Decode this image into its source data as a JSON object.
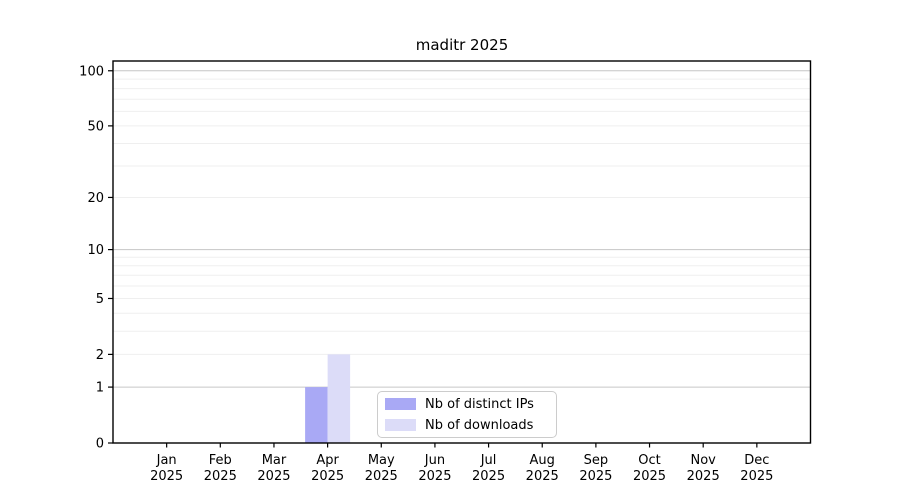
{
  "chart_data": {
    "type": "bar",
    "title": "maditr 2025",
    "categories": [
      "Jan 2025",
      "Feb 2025",
      "Mar 2025",
      "Apr 2025",
      "May 2025",
      "Jun 2025",
      "Jul 2025",
      "Aug 2025",
      "Sep 2025",
      "Oct 2025",
      "Nov 2025",
      "Dec 2025"
    ],
    "x_tick_labels": [
      {
        "month": "Jan",
        "year": "2025"
      },
      {
        "month": "Feb",
        "year": "2025"
      },
      {
        "month": "Mar",
        "year": "2025"
      },
      {
        "month": "Apr",
        "year": "2025"
      },
      {
        "month": "May",
        "year": "2025"
      },
      {
        "month": "Jun",
        "year": "2025"
      },
      {
        "month": "Jul",
        "year": "2025"
      },
      {
        "month": "Aug",
        "year": "2025"
      },
      {
        "month": "Sep",
        "year": "2025"
      },
      {
        "month": "Oct",
        "year": "2025"
      },
      {
        "month": "Nov",
        "year": "2025"
      },
      {
        "month": "Dec",
        "year": "2025"
      }
    ],
    "series": [
      {
        "name": "Nb of distinct IPs",
        "color": "#a9a9f5",
        "values": [
          0,
          0,
          0,
          1,
          0,
          0,
          0,
          0,
          0,
          0,
          0,
          0
        ]
      },
      {
        "name": "Nb of downloads",
        "color": "#dcdcf8",
        "values": [
          0,
          0,
          0,
          2,
          0,
          0,
          0,
          0,
          0,
          0,
          0,
          0
        ]
      }
    ],
    "y_axis": {
      "scale": "log1p",
      "tick_values": [
        0,
        1,
        2,
        5,
        10,
        20,
        50,
        100
      ],
      "max": 113,
      "major_grid_values": [
        1,
        10,
        100
      ],
      "minor_grid_values": [
        2,
        3,
        4,
        5,
        6,
        7,
        8,
        9,
        20,
        30,
        40,
        50,
        60,
        70,
        80,
        90
      ]
    },
    "legend": {
      "position": "lower center",
      "entries": [
        "Nb of distinct IPs",
        "Nb of downloads"
      ]
    },
    "grid": true
  },
  "colors": {
    "bar_distinct_ips": "#a9a9f5",
    "bar_downloads": "#dcdcf8",
    "grid_major": "#c6c6c6",
    "grid_minor": "#efefef",
    "spine": "#000000",
    "text": "#000000",
    "legend_border": "#cccccc",
    "legend_bg": "#ffffff"
  }
}
